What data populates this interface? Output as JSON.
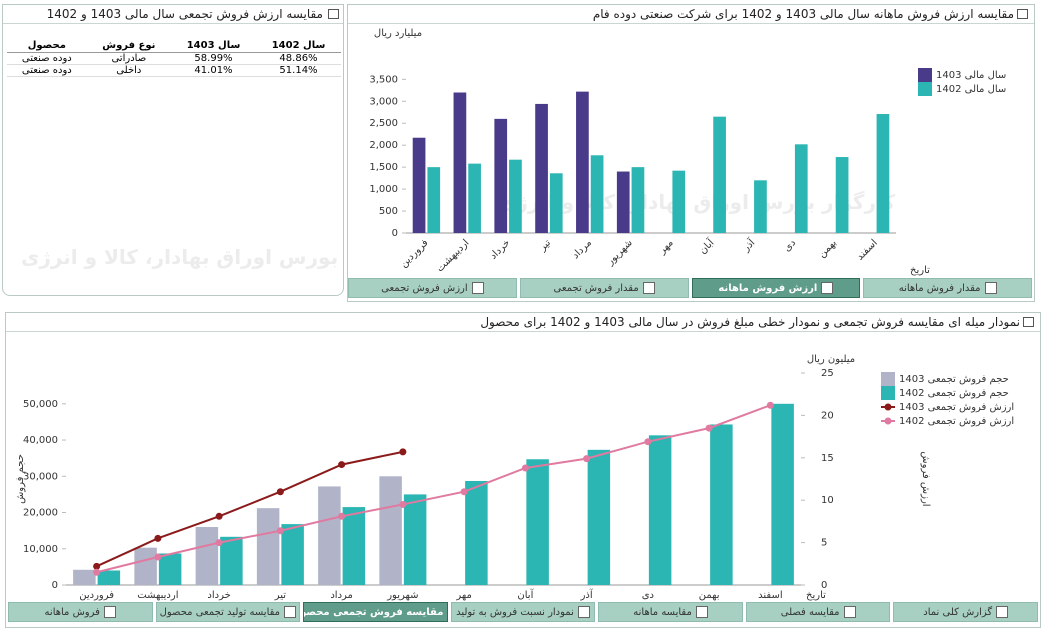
{
  "table_panel": {
    "title": "مقایسه ارزش فروش تجمعی سال مالی 1403 و 1402",
    "columns": [
      "سال 1402",
      "سال 1403",
      "نوع فروش",
      "محصول"
    ],
    "rows": [
      [
        "48.86%",
        "58.99%",
        "صادراتی",
        "دوده صنعتی"
      ],
      [
        "51.14%",
        "41.01%",
        "داخلی",
        "دوده صنعتی"
      ]
    ],
    "watermark": "کارگزار بورس اوراق بهادار، کالا و انرژی"
  },
  "chart_data": [
    {
      "type": "bar",
      "title": "مقایسه ارزش فروش ماهانه سال مالی 1403 و 1402 برای شرکت صنعتی دوده فام",
      "y_unit": "میلیارد ریال",
      "x_label": "تاریخ",
      "categories": [
        "فروردین",
        "اردیبهشت",
        "خرداد",
        "تیر",
        "مرداد",
        "شهریور",
        "مهر",
        "آبان",
        "آذر",
        "دی",
        "بهمن",
        "اسفند"
      ],
      "series": [
        {
          "name": "سال مالی 1403",
          "color": "#4a3a8a",
          "values": [
            2170,
            3200,
            2600,
            2940,
            3220,
            1400,
            null,
            null,
            null,
            null,
            null,
            null
          ]
        },
        {
          "name": "سال مالی 1402",
          "color": "#2bb5b3",
          "values": [
            1500,
            1580,
            1670,
            1360,
            1770,
            1500,
            1420,
            2650,
            1200,
            2020,
            1730,
            2710
          ]
        }
      ],
      "ylim": [
        0,
        4100
      ],
      "yticks": [
        0,
        {
          "value": 500,
          "label": "500"
        },
        {
          "value": 1000,
          "label": "1,000"
        },
        {
          "value": 1500,
          "label": "1,500"
        },
        {
          "value": 2000,
          "label": "2,000"
        },
        {
          "value": 2500,
          "label": "2,500"
        },
        {
          "value": 3000,
          "label": "3,000"
        },
        {
          "value": 3500,
          "label": "3,500"
        }
      ],
      "grid": false,
      "tabs": [
        "مقدار فروش ماهانه",
        "ارزش فروش ماهانه",
        "مقدار فروش تجمعی",
        "ارزش فروش تجمعی"
      ],
      "active_tab": 1
    },
    {
      "type": "bar-line",
      "title": "نمودار میله ای مقایسه فروش تجمعی و نمودار خطی مبلغ فروش در سال مالی 1403 و 1402 برای محصول",
      "y_label": "حجم فروش",
      "y2_label": "ارزش فروش",
      "y2_unit": "میلیون ریال",
      "x_label": "تاریخ",
      "categories": [
        "فروردین",
        "اردیبهشت",
        "خرداد",
        "تیر",
        "مرداد",
        "شهریور",
        "مهر",
        "آبان",
        "آذر",
        "دی",
        "بهمن",
        "اسفند"
      ],
      "series": [
        {
          "name": "حجم فروش تجمعی 1403",
          "type": "bar",
          "color": "#b1b4c8",
          "values": [
            4200,
            10300,
            16000,
            21200,
            27200,
            30000,
            null,
            null,
            null,
            null,
            null,
            null
          ]
        },
        {
          "name": "حجم فروش تجمعی 1402",
          "type": "bar",
          "color": "#2bb5b3",
          "values": [
            4000,
            8700,
            13300,
            16800,
            21500,
            25000,
            28700,
            34700,
            37300,
            41300,
            44300,
            50000
          ]
        },
        {
          "name": "ارزش فروش تجمعی 1403",
          "type": "line",
          "axis": "y2",
          "color": "#8b1a1a",
          "values": [
            2.2,
            5.5,
            8.1,
            11,
            14.2,
            15.7,
            null,
            null,
            null,
            null,
            null,
            null
          ]
        },
        {
          "name": "ارزش فروش تجمعی 1402",
          "type": "line",
          "axis": "y2",
          "color": "#e07aa0",
          "values": [
            1.5,
            3.3,
            5.0,
            6.4,
            8.1,
            9.5,
            11.0,
            13.8,
            14.9,
            16.9,
            18.5,
            21.2
          ]
        }
      ],
      "ylim": [
        0,
        58500
      ],
      "yticks": [
        0,
        {
          "value": 10000,
          "label": "10,000"
        },
        {
          "value": 20000,
          "label": "20,000"
        },
        {
          "value": 30000,
          "label": "30,000"
        },
        {
          "value": 40000,
          "label": "40,000"
        },
        {
          "value": 50000,
          "label": "50,000"
        }
      ],
      "y2lim": [
        0,
        25
      ],
      "y2ticks": [
        0,
        5,
        10,
        15,
        20,
        25
      ],
      "grid": false,
      "tabs": [
        "گزارش کلی نماد",
        "مقایسه فصلی",
        "مقایسه ماهانه",
        "نمودار نسبت فروش به تولید",
        "مقایسه فروش تجمعی محصول",
        "مقایسه تولید تجمعی محصول",
        "فروش ماهانه"
      ],
      "active_tab": 4
    }
  ]
}
